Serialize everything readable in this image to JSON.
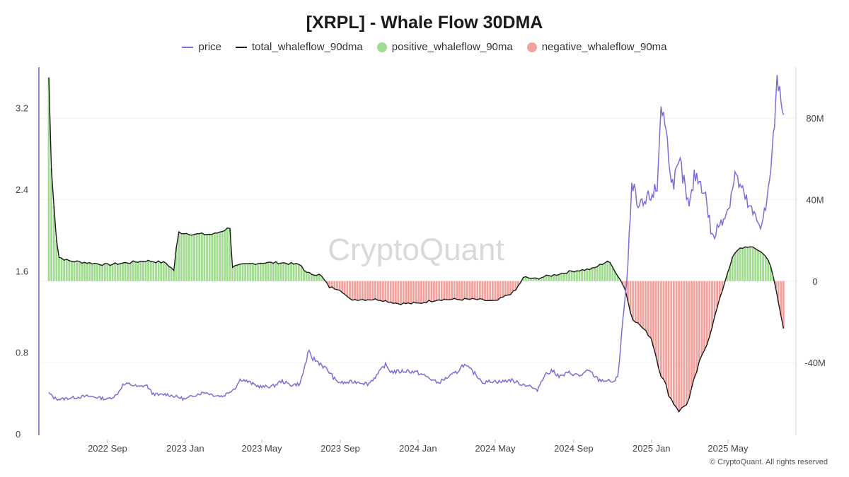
{
  "page_title": "[XRPL] - Whale Flow 30DMA",
  "watermark": "CryptoQuant",
  "copyright": "© CryptoQuant. All rights reserved",
  "colors": {
    "price": "#7b6fd6",
    "total": "#1a1a1a",
    "positive": "#9fdc8f",
    "negative": "#f0a39c",
    "axis": "#8c8ce0"
  },
  "chart_data": {
    "type": "line",
    "title": "[XRPL] - Whale Flow 30DMA",
    "legend": [
      {
        "name": "price",
        "marker": "line"
      },
      {
        "name": "total_whaleflow_90dma",
        "marker": "line"
      },
      {
        "name": "positive_whaleflow_90ma",
        "marker": "dot"
      },
      {
        "name": "negative_whaleflow_90ma",
        "marker": "dot"
      }
    ],
    "legend_placement": "top-center",
    "grid": "horizontal",
    "x_ticks": [
      "2022 Sep",
      "2023 Jan",
      "2023 May",
      "2023 Sep",
      "2024 Jan",
      "2024 May",
      "2024 Sep",
      "2025 Jan",
      "2025 May"
    ],
    "x_tick_dates": [
      "2022-09-01",
      "2023-01-01",
      "2023-05-01",
      "2023-09-01",
      "2024-01-01",
      "2024-05-01",
      "2024-09-01",
      "2025-01-01",
      "2025-05-01"
    ],
    "x_range": [
      "2022-06-01",
      "2025-07-31"
    ],
    "y_left": {
      "ticks": [
        "0",
        "0.8",
        "1.6",
        "2.4",
        "3.2"
      ],
      "range": [
        0,
        3.6
      ]
    },
    "y_right": {
      "ticks": [
        "-40M",
        "0",
        "40M",
        "80M"
      ],
      "range": [
        -75000000,
        105000000
      ]
    },
    "series": [
      {
        "name": "price",
        "axis": "left",
        "points": [
          [
            "2022-06-01",
            0.4
          ],
          [
            "2022-06-10",
            0.35
          ],
          [
            "2022-06-20",
            0.34
          ],
          [
            "2022-07-01",
            0.35
          ],
          [
            "2022-07-15",
            0.36
          ],
          [
            "2022-08-01",
            0.37
          ],
          [
            "2022-08-15",
            0.36
          ],
          [
            "2022-09-01",
            0.34
          ],
          [
            "2022-09-15",
            0.38
          ],
          [
            "2022-09-25",
            0.48
          ],
          [
            "2022-10-05",
            0.49
          ],
          [
            "2022-10-20",
            0.46
          ],
          [
            "2022-11-01",
            0.48
          ],
          [
            "2022-11-10",
            0.4
          ],
          [
            "2022-11-20",
            0.38
          ],
          [
            "2022-12-01",
            0.39
          ],
          [
            "2022-12-15",
            0.37
          ],
          [
            "2023-01-01",
            0.34
          ],
          [
            "2023-01-15",
            0.38
          ],
          [
            "2023-02-01",
            0.41
          ],
          [
            "2023-02-15",
            0.38
          ],
          [
            "2023-03-01",
            0.37
          ],
          [
            "2023-03-20",
            0.45
          ],
          [
            "2023-03-29",
            0.54
          ],
          [
            "2023-04-10",
            0.51
          ],
          [
            "2023-04-20",
            0.48
          ],
          [
            "2023-05-01",
            0.46
          ],
          [
            "2023-05-20",
            0.47
          ],
          [
            "2023-06-01",
            0.52
          ],
          [
            "2023-06-15",
            0.48
          ],
          [
            "2023-06-30",
            0.49
          ],
          [
            "2023-07-13",
            0.8
          ],
          [
            "2023-07-20",
            0.74
          ],
          [
            "2023-08-01",
            0.69
          ],
          [
            "2023-08-16",
            0.6
          ],
          [
            "2023-08-25",
            0.52
          ],
          [
            "2023-09-05",
            0.5
          ],
          [
            "2023-09-20",
            0.51
          ],
          [
            "2023-10-01",
            0.51
          ],
          [
            "2023-10-15",
            0.49
          ],
          [
            "2023-11-01",
            0.6
          ],
          [
            "2023-11-10",
            0.68
          ],
          [
            "2023-11-20",
            0.61
          ],
          [
            "2023-12-01",
            0.61
          ],
          [
            "2023-12-15",
            0.62
          ],
          [
            "2024-01-01",
            0.6
          ],
          [
            "2024-01-15",
            0.56
          ],
          [
            "2024-02-01",
            0.5
          ],
          [
            "2024-02-15",
            0.55
          ],
          [
            "2024-03-01",
            0.6
          ],
          [
            "2024-03-12",
            0.68
          ],
          [
            "2024-03-25",
            0.62
          ],
          [
            "2024-04-01",
            0.58
          ],
          [
            "2024-04-13",
            0.5
          ],
          [
            "2024-04-25",
            0.52
          ],
          [
            "2024-05-10",
            0.51
          ],
          [
            "2024-05-25",
            0.53
          ],
          [
            "2024-06-10",
            0.49
          ],
          [
            "2024-06-25",
            0.47
          ],
          [
            "2024-07-05",
            0.42
          ],
          [
            "2024-07-17",
            0.58
          ],
          [
            "2024-07-31",
            0.62
          ],
          [
            "2024-08-10",
            0.56
          ],
          [
            "2024-08-25",
            0.6
          ],
          [
            "2024-09-10",
            0.57
          ],
          [
            "2024-09-25",
            0.62
          ],
          [
            "2024-10-10",
            0.53
          ],
          [
            "2024-10-25",
            0.52
          ],
          [
            "2024-11-05",
            0.51
          ],
          [
            "2024-11-10",
            0.59
          ],
          [
            "2024-11-16",
            1.05
          ],
          [
            "2024-11-23",
            1.45
          ],
          [
            "2024-12-02",
            2.5
          ],
          [
            "2024-12-10",
            2.2
          ],
          [
            "2024-12-20",
            2.25
          ],
          [
            "2025-01-01",
            2.35
          ],
          [
            "2025-01-10",
            2.4
          ],
          [
            "2025-01-16",
            3.25
          ],
          [
            "2025-01-22",
            3.05
          ],
          [
            "2025-02-03",
            2.45
          ],
          [
            "2025-02-15",
            2.65
          ],
          [
            "2025-03-01",
            2.2
          ],
          [
            "2025-03-10",
            2.55
          ],
          [
            "2025-03-25",
            2.4
          ],
          [
            "2025-04-07",
            1.9
          ],
          [
            "2025-04-20",
            2.1
          ],
          [
            "2025-05-01",
            2.2
          ],
          [
            "2025-05-12",
            2.55
          ],
          [
            "2025-05-25",
            2.35
          ],
          [
            "2025-06-05",
            2.2
          ],
          [
            "2025-06-20",
            2.05
          ],
          [
            "2025-07-01",
            2.25
          ],
          [
            "2025-07-10",
            2.8
          ],
          [
            "2025-07-18",
            3.5
          ],
          [
            "2025-07-24",
            3.3
          ],
          [
            "2025-07-28",
            3.1
          ]
        ]
      },
      {
        "name": "total_whaleflow_90dma",
        "axis": "right",
        "points": [
          [
            "2022-06-01",
            100000000
          ],
          [
            "2022-06-05",
            55000000
          ],
          [
            "2022-06-15",
            12000000
          ],
          [
            "2022-07-01",
            10000000
          ],
          [
            "2022-08-01",
            9000000
          ],
          [
            "2022-09-01",
            8000000
          ],
          [
            "2022-10-01",
            9000000
          ],
          [
            "2022-11-01",
            10000000
          ],
          [
            "2022-12-01",
            9000000
          ],
          [
            "2022-12-15",
            5000000
          ],
          [
            "2022-12-20",
            24000000
          ],
          [
            "2023-01-15",
            23000000
          ],
          [
            "2023-02-15",
            23000000
          ],
          [
            "2023-03-10",
            26000000
          ],
          [
            "2023-03-15",
            27000000
          ],
          [
            "2023-03-16",
            7000000
          ],
          [
            "2023-04-01",
            8000000
          ],
          [
            "2023-05-01",
            9000000
          ],
          [
            "2023-06-01",
            9000000
          ],
          [
            "2023-07-01",
            8000000
          ],
          [
            "2023-07-10",
            4000000
          ],
          [
            "2023-08-01",
            3000000
          ],
          [
            "2023-08-15",
            -3000000
          ],
          [
            "2023-09-01",
            -4000000
          ],
          [
            "2023-09-15",
            -9000000
          ],
          [
            "2023-10-01",
            -9000000
          ],
          [
            "2023-11-01",
            -9000000
          ],
          [
            "2023-12-01",
            -11000000
          ],
          [
            "2024-01-01",
            -11000000
          ],
          [
            "2024-02-01",
            -9000000
          ],
          [
            "2024-03-01",
            -9000000
          ],
          [
            "2024-04-01",
            -9000000
          ],
          [
            "2024-05-01",
            -10000000
          ],
          [
            "2024-06-01",
            -5000000
          ],
          [
            "2024-06-15",
            2000000
          ],
          [
            "2024-07-01",
            1000000
          ],
          [
            "2024-07-15",
            2000000
          ],
          [
            "2024-08-01",
            3000000
          ],
          [
            "2024-09-01",
            5000000
          ],
          [
            "2024-10-01",
            6000000
          ],
          [
            "2024-10-25",
            10000000
          ],
          [
            "2024-11-05",
            5000000
          ],
          [
            "2024-11-20",
            -3000000
          ],
          [
            "2024-12-01",
            -18000000
          ],
          [
            "2024-12-15",
            -22000000
          ],
          [
            "2025-01-01",
            -28000000
          ],
          [
            "2025-01-15",
            -45000000
          ],
          [
            "2025-02-01",
            -58000000
          ],
          [
            "2025-02-15",
            -64000000
          ],
          [
            "2025-03-01",
            -58000000
          ],
          [
            "2025-03-15",
            -42000000
          ],
          [
            "2025-04-01",
            -28000000
          ],
          [
            "2025-04-15",
            -12000000
          ],
          [
            "2025-05-01",
            5000000
          ],
          [
            "2025-05-10",
            13000000
          ],
          [
            "2025-05-20",
            16000000
          ],
          [
            "2025-06-01",
            17000000
          ],
          [
            "2025-06-20",
            15000000
          ],
          [
            "2025-07-05",
            10000000
          ],
          [
            "2025-07-15",
            -4000000
          ],
          [
            "2025-07-28",
            -25000000
          ]
        ]
      },
      {
        "name": "positive_whaleflow_90ma",
        "axis": "right",
        "style": "bars",
        "rule": "total_whaleflow_90dma when > 0"
      },
      {
        "name": "negative_whaleflow_90ma",
        "axis": "right",
        "style": "bars",
        "rule": "total_whaleflow_90dma when < 0"
      }
    ]
  }
}
